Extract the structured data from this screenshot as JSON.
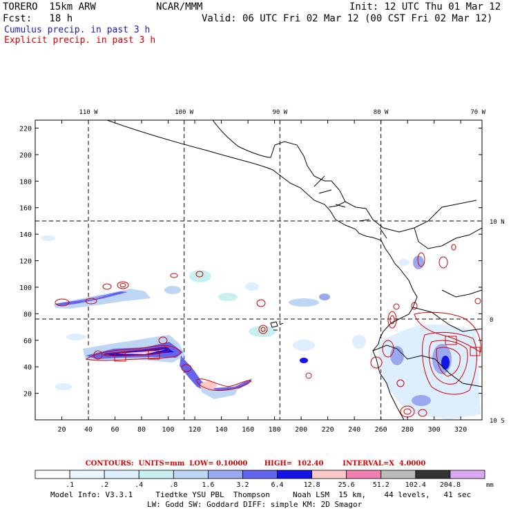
{
  "header": {
    "model": "TORERO  15km ARW",
    "org": "NCAR/MMM",
    "init": "Init: 12 UTC Thu 01 Mar 12",
    "fcst": "Fcst:   18 h",
    "valid": "Valid: 06 UTC Fri 02 Mar 12 (00 CST Fri 02 Mar 12)",
    "cumulus_label": "Cumulus precip. in past 3 h",
    "explicit_label": "Explicit precip. in past 3 h",
    "cumulus_color": "#1a1ab8",
    "explicit_color": "#d40000"
  },
  "chart_data": {
    "type": "heatmap",
    "title": "Cumulus and explicit precipitation in past 3 h",
    "x_grid_ticks": [
      20,
      40,
      60,
      80,
      100,
      120,
      140,
      160,
      180,
      200,
      220,
      240,
      260,
      280,
      300,
      320
    ],
    "y_grid_ticks": [
      20,
      40,
      60,
      80,
      100,
      120,
      140,
      160,
      180,
      200,
      220
    ],
    "xlim": [
      0,
      336
    ],
    "ylim": [
      0,
      226
    ],
    "longitude_labels": [
      {
        "label": "110 W",
        "x": 40
      },
      {
        "label": "100 W",
        "x": 112
      },
      {
        "label": "90 W",
        "x": 184
      },
      {
        "label": "80 W",
        "x": 260
      },
      {
        "label": "70 W",
        "x": 333
      }
    ],
    "latitude_labels": [
      {
        "label": "10 N",
        "y": 150
      },
      {
        "label": "0",
        "y": 76
      },
      {
        "label": "10 S",
        "y": 0
      }
    ],
    "colorbar": {
      "levels": [
        ".1",
        ".2",
        ".4",
        ".8",
        "1.6",
        "3.2",
        "6.4",
        "12.8",
        "25.6",
        "51.2",
        "102.4",
        "204.8"
      ],
      "colors": [
        "#ffffff",
        "#ebf5ff",
        "#ddeeff",
        "#c8f0f0",
        "#bcd6f4",
        "#9aa8f0",
        "#6464ee",
        "#1414e6",
        "#ffc8c8",
        "#f080b0",
        "#bbbbbb",
        "#333333",
        "#dca8f4"
      ],
      "units": "mm"
    },
    "contours": {
      "text": "CONTOURS:  UNITS=mm  LOW= 0.10000       HIGH=  102.40        INTERVAL=X  4.0000",
      "units": "mm",
      "low": 0.1,
      "high": 102.4,
      "interval": "X 4.0000"
    }
  },
  "footer": {
    "line1": "Model Info: V3.3.1     Tiedtke YSU PBL  Thompson     Noah LSM  15 km,    44 levels,   41 sec",
    "line2": "LW: Godd SW: Goddard DIFF: simple KM: 2D Smagor"
  }
}
